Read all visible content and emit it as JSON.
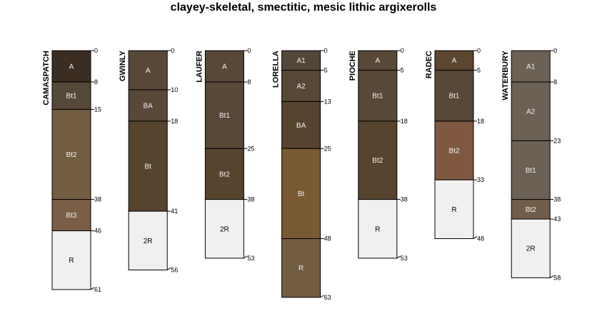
{
  "title": "clayey-skeletal, smectitic, mesic lithic argixerolls",
  "profiles": [
    {
      "name": "CAMASPATCH",
      "horizons": [
        {
          "name": "A",
          "top": 0,
          "bottom": 8,
          "color": "#3b2d21"
        },
        {
          "name": "Bt1",
          "top": 8,
          "bottom": 15,
          "color": "#56493a"
        },
        {
          "name": "Bt2",
          "top": 15,
          "bottom": 38,
          "color": "#735d42"
        },
        {
          "name": "Bt3",
          "top": 38,
          "bottom": 46,
          "color": "#7a5e47"
        },
        {
          "name": "R",
          "top": 46,
          "bottom": 61,
          "color": "#f0f0f0"
        }
      ]
    },
    {
      "name": "GWINLY",
      "horizons": [
        {
          "name": "A",
          "top": 0,
          "bottom": 10,
          "color": "#574838"
        },
        {
          "name": "BA",
          "top": 10,
          "bottom": 18,
          "color": "#574838"
        },
        {
          "name": "Bt",
          "top": 18,
          "bottom": 41,
          "color": "#57442e"
        },
        {
          "name": "2R",
          "top": 41,
          "bottom": 56,
          "color": "#f0f0f0"
        }
      ]
    },
    {
      "name": "LAUFER",
      "horizons": [
        {
          "name": "A",
          "top": 0,
          "bottom": 8,
          "color": "#574838"
        },
        {
          "name": "Bt1",
          "top": 8,
          "bottom": 25,
          "color": "#574838"
        },
        {
          "name": "Bt2",
          "top": 25,
          "bottom": 38,
          "color": "#57442e"
        },
        {
          "name": "2R",
          "top": 38,
          "bottom": 53,
          "color": "#f0f0f0"
        }
      ]
    },
    {
      "name": "LORELLA",
      "horizons": [
        {
          "name": "A1",
          "top": 0,
          "bottom": 5,
          "color": "#54473a"
        },
        {
          "name": "A2",
          "top": 5,
          "bottom": 13,
          "color": "#574838"
        },
        {
          "name": "BA",
          "top": 13,
          "bottom": 25,
          "color": "#57442e"
        },
        {
          "name": "Bt",
          "top": 25,
          "bottom": 48,
          "color": "#7a5a34"
        },
        {
          "name": "R",
          "top": 48,
          "bottom": 63,
          "color": "#735d42"
        }
      ]
    },
    {
      "name": "PIOCHE",
      "horizons": [
        {
          "name": "A",
          "top": 0,
          "bottom": 5,
          "color": "#574838"
        },
        {
          "name": "Bt1",
          "top": 5,
          "bottom": 18,
          "color": "#574838"
        },
        {
          "name": "Bt2",
          "top": 18,
          "bottom": 38,
          "color": "#57442e"
        },
        {
          "name": "R",
          "top": 38,
          "bottom": 53,
          "color": "#f0f0f0"
        }
      ]
    },
    {
      "name": "RADEC",
      "horizons": [
        {
          "name": "A",
          "top": 0,
          "bottom": 5,
          "color": "#5c4630"
        },
        {
          "name": "Bt1",
          "top": 5,
          "bottom": 18,
          "color": "#574838"
        },
        {
          "name": "Bt2",
          "top": 18,
          "bottom": 33,
          "color": "#805840"
        },
        {
          "name": "R",
          "top": 33,
          "bottom": 48,
          "color": "#f0f0f0"
        }
      ]
    },
    {
      "name": "WATERBURY",
      "horizons": [
        {
          "name": "A1",
          "top": 0,
          "bottom": 8,
          "color": "#6b6154"
        },
        {
          "name": "A2",
          "top": 8,
          "bottom": 23,
          "color": "#6b6154"
        },
        {
          "name": "Bt1",
          "top": 23,
          "bottom": 38,
          "color": "#6b6154"
        },
        {
          "name": "Bt2",
          "top": 38,
          "bottom": 43,
          "color": "#705e4a"
        },
        {
          "name": "2R",
          "top": 43,
          "bottom": 58,
          "color": "#f0f0f0"
        }
      ]
    }
  ]
}
